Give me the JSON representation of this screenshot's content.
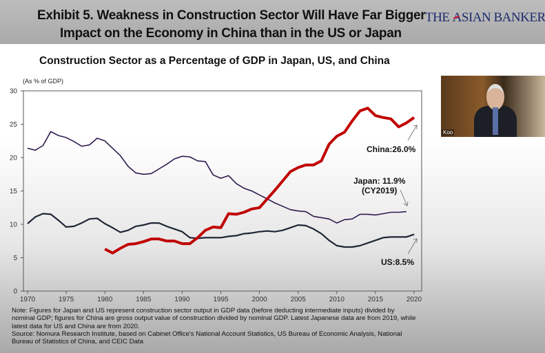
{
  "header": {
    "title_line1": "Exhibit 5. Weakness in Construction Sector Will Have Far Bigger",
    "title_line2": "Impact on the Economy in China than in the US or Japan",
    "logo": "THE ASIAN BANKER"
  },
  "video": {
    "participant_name": "Koo"
  },
  "chart_data": {
    "type": "line",
    "title": "Construction Sector as a Percentage of GDP in Japan, US, and China",
    "ylabel": "(As % of GDP)",
    "xlabel": "",
    "xlim": [
      1970,
      2020
    ],
    "ylim": [
      0,
      30
    ],
    "xticks": [
      1970,
      1975,
      1980,
      1985,
      1990,
      1995,
      2000,
      2005,
      2010,
      2015,
      2020
    ],
    "yticks": [
      0,
      5,
      10,
      15,
      20,
      25,
      30
    ],
    "grid": false,
    "series": [
      {
        "key": "japan",
        "color": "#2e1a4f",
        "x": [
          1970,
          1971,
          1972,
          1973,
          1974,
          1975,
          1976,
          1977,
          1978,
          1979,
          1980,
          1981,
          1982,
          1983,
          1984,
          1985,
          1986,
          1987,
          1988,
          1989,
          1990,
          1991,
          1992,
          1993,
          1994,
          1995,
          1996,
          1997,
          1998,
          1999,
          2000,
          2001,
          2002,
          2003,
          2004,
          2005,
          2006,
          2007,
          2008,
          2009,
          2010,
          2011,
          2012,
          2013,
          2014,
          2015,
          2016,
          2017,
          2018,
          2019
        ],
        "values": [
          21.4,
          21.1,
          21.8,
          23.9,
          23.3,
          23.0,
          22.4,
          21.7,
          21.9,
          22.9,
          22.5,
          21.4,
          20.3,
          18.7,
          17.7,
          17.5,
          17.6,
          18.3,
          19.0,
          19.8,
          20.2,
          20.1,
          19.5,
          19.4,
          17.4,
          16.9,
          17.3,
          16.1,
          15.4,
          15.0,
          14.4,
          13.8,
          13.2,
          12.7,
          12.2,
          12.0,
          11.9,
          11.2,
          11.0,
          10.8,
          10.2,
          10.7,
          10.8,
          11.5,
          11.5,
          11.4,
          11.6,
          11.8,
          11.8,
          11.9
        ]
      },
      {
        "key": "us",
        "color": "#1e2535",
        "x": [
          1970,
          1971,
          1972,
          1973,
          1974,
          1975,
          1976,
          1977,
          1978,
          1979,
          1980,
          1981,
          1982,
          1983,
          1984,
          1985,
          1986,
          1987,
          1988,
          1989,
          1990,
          1991,
          1992,
          1993,
          1994,
          1995,
          1996,
          1997,
          1998,
          1999,
          2000,
          2001,
          2002,
          2003,
          2004,
          2005,
          2006,
          2007,
          2008,
          2009,
          2010,
          2011,
          2012,
          2013,
          2014,
          2015,
          2016,
          2017,
          2018,
          2019,
          2020
        ],
        "values": [
          10.1,
          11.1,
          11.6,
          11.5,
          10.6,
          9.6,
          9.7,
          10.2,
          10.8,
          10.9,
          10.1,
          9.5,
          8.8,
          9.1,
          9.7,
          9.9,
          10.2,
          10.2,
          9.7,
          9.3,
          8.9,
          8.0,
          7.9,
          8.0,
          8.0,
          8.0,
          8.2,
          8.3,
          8.6,
          8.7,
          8.9,
          9.0,
          8.9,
          9.1,
          9.5,
          9.9,
          9.8,
          9.3,
          8.6,
          7.6,
          6.8,
          6.6,
          6.6,
          6.8,
          7.2,
          7.6,
          8.0,
          8.1,
          8.1,
          8.1,
          8.5
        ]
      },
      {
        "key": "china",
        "color": "#c00000",
        "x": [
          1980,
          1981,
          1982,
          1983,
          1984,
          1985,
          1986,
          1987,
          1988,
          1989,
          1990,
          1991,
          1992,
          1993,
          1994,
          1995,
          1996,
          1997,
          1998,
          1999,
          2000,
          2001,
          2002,
          2003,
          2004,
          2005,
          2006,
          2007,
          2008,
          2009,
          2010,
          2011,
          2012,
          2013,
          2014,
          2015,
          2016,
          2017,
          2018,
          2019,
          2020
        ],
        "values": [
          6.3,
          5.7,
          6.4,
          7.0,
          7.1,
          7.4,
          7.8,
          7.8,
          7.5,
          7.5,
          7.1,
          7.1,
          8.0,
          9.1,
          9.6,
          9.5,
          11.6,
          11.5,
          11.8,
          12.3,
          12.5,
          13.8,
          15.1,
          16.5,
          17.9,
          18.5,
          18.9,
          18.9,
          19.5,
          22.0,
          23.2,
          23.8,
          25.5,
          27.0,
          27.4,
          26.3,
          26.0,
          25.8,
          24.6,
          25.2,
          26.0
        ]
      }
    ],
    "annotations": {
      "china": "China:26.0%",
      "japan_line1": "Japan: 11.9%",
      "japan_line2": "(CY2019)",
      "us": "US:8.5%"
    }
  },
  "notes": {
    "note": "Note: Figures for Japan and US represent construction sector output in GDP data (before deducting intermediate inputs) divided by nominal GDP; figures for China are gross output value of construction divided by nominal GDP. Latest Japanese data are from 2019, while latest data for US and China are from 2020.",
    "source": "Source: Nomura Research Institute, based on Cabinet Office's National Account Statistics, US Bureau of Economic Analysis, National Bureau of Statistics of China, and CEIC Data"
  }
}
